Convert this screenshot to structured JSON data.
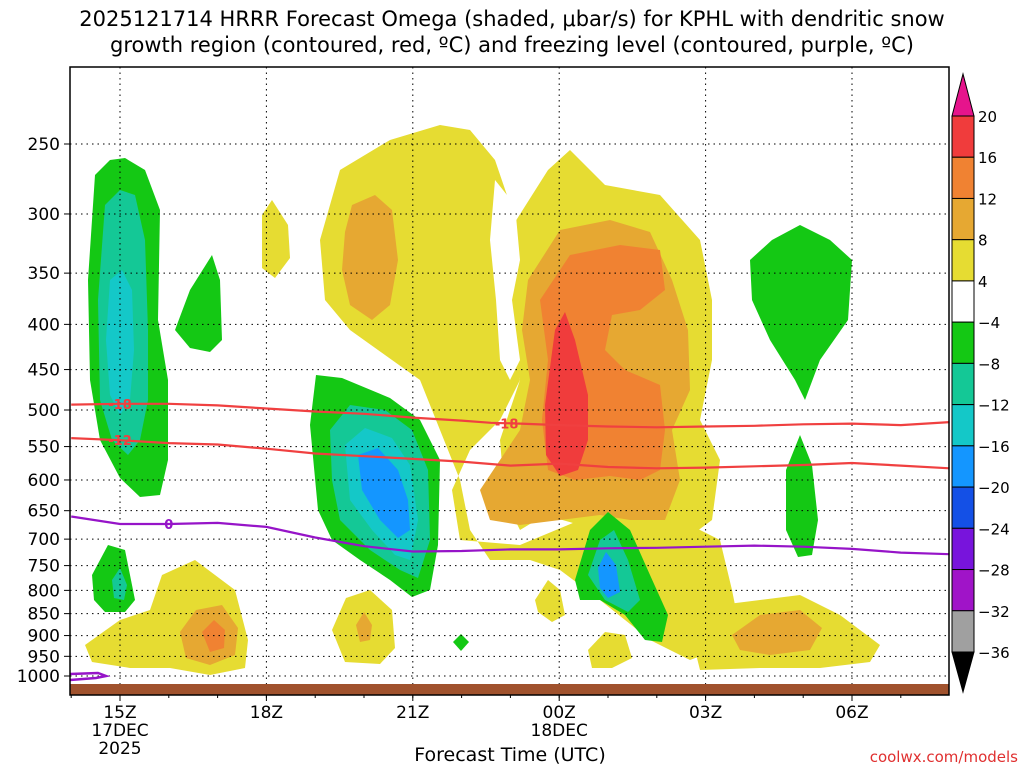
{
  "chart_data": {
    "type": "heatmap",
    "title": "2025121714 HRRR Forecast Omega (shaded, μbar/s) for KPHL with dendritic snow\ngrowth region (contoured, red, ºC) and freezing level (contoured, purple, ºC)",
    "xlabel": "Forecast Time (UTC)",
    "ylabel": "",
    "y_ticks": [
      250,
      300,
      350,
      400,
      450,
      500,
      550,
      600,
      650,
      700,
      750,
      800,
      850,
      900,
      950,
      1000
    ],
    "x_ticks": [
      {
        "hour": 15,
        "label": "15Z",
        "sub1": "17DEC",
        "sub2": "2025"
      },
      {
        "hour": 18,
        "label": "18Z",
        "sub1": "",
        "sub2": ""
      },
      {
        "hour": 21,
        "label": "21Z",
        "sub1": "",
        "sub2": ""
      },
      {
        "hour": 24,
        "label": "00Z",
        "sub1": "18DEC",
        "sub2": ""
      },
      {
        "hour": 27,
        "label": "03Z",
        "sub1": "",
        "sub2": ""
      },
      {
        "hour": 30,
        "label": "06Z",
        "sub1": "",
        "sub2": ""
      }
    ],
    "xlim_hours": [
      14,
      32
    ],
    "ylim_hpa": [
      1030,
      190
    ],
    "grid": true,
    "colorbar": {
      "labels": [
        "20",
        "16",
        "12",
        "8",
        "4",
        "−4",
        "−8",
        "−12",
        "−16",
        "−20",
        "−24",
        "−28",
        "−32",
        "−36"
      ],
      "colors": [
        "#f03c3c",
        "#f08232",
        "#e6a832",
        "#e6dc32",
        "#ffffff",
        "#14c814",
        "#14c896",
        "#14c8c8",
        "#1496ff",
        "#1450e6",
        "#7814dc",
        "#a014c8",
        "#a0a0a0"
      ],
      "top_arrow_color": "#e6148c",
      "bottom_arrow_color": "#000000"
    },
    "colors": {
      "ground": "#a0522d",
      "dgz_contour": "#f04040",
      "freezing_contour": "#9614c8"
    },
    "contours": [
      {
        "name": "dgz-minus18",
        "label": "-18",
        "points": [
          [
            14.0,
            493
          ],
          [
            15.0,
            492
          ],
          [
            16.0,
            492
          ],
          [
            17.0,
            494
          ],
          [
            18.0,
            498
          ],
          [
            19.0,
            502
          ],
          [
            20.0,
            505
          ],
          [
            21.0,
            510
          ],
          [
            22.0,
            514
          ],
          [
            22.6,
            517
          ],
          [
            23.2,
            518
          ],
          [
            24.0,
            520
          ],
          [
            25.0,
            522
          ],
          [
            26.0,
            523
          ],
          [
            27.0,
            522
          ],
          [
            28.0,
            521
          ],
          [
            29.0,
            519
          ],
          [
            30.0,
            518
          ],
          [
            31.0,
            520
          ],
          [
            32.0,
            516
          ]
        ]
      },
      {
        "name": "dgz-minus12",
        "label": "-12",
        "points": [
          [
            14.0,
            538
          ],
          [
            15.0,
            541
          ],
          [
            16.0,
            545
          ],
          [
            17.0,
            547
          ],
          [
            18.0,
            553
          ],
          [
            19.0,
            560
          ],
          [
            20.0,
            564
          ],
          [
            21.0,
            568
          ],
          [
            22.0,
            572
          ],
          [
            23.0,
            578
          ],
          [
            24.0,
            575
          ],
          [
            25.0,
            580
          ],
          [
            26.0,
            582
          ],
          [
            27.0,
            581
          ],
          [
            28.0,
            579
          ],
          [
            29.0,
            577
          ],
          [
            30.0,
            574
          ],
          [
            31.0,
            578
          ],
          [
            32.0,
            582
          ]
        ]
      },
      {
        "name": "freezing-level-0",
        "label": "0",
        "points": [
          [
            14.0,
            660
          ],
          [
            15.0,
            673
          ],
          [
            16.0,
            673
          ],
          [
            17.0,
            671
          ],
          [
            18.0,
            678
          ],
          [
            19.0,
            697
          ],
          [
            20.0,
            713
          ],
          [
            21.0,
            723
          ],
          [
            22.0,
            722
          ],
          [
            23.0,
            719
          ],
          [
            24.0,
            719
          ],
          [
            25.0,
            717
          ],
          [
            26.0,
            716
          ],
          [
            27.0,
            714
          ],
          [
            28.0,
            712
          ],
          [
            29.0,
            714
          ],
          [
            30.0,
            718
          ],
          [
            31.0,
            725
          ],
          [
            32.0,
            728
          ]
        ]
      }
    ]
  },
  "footer": {
    "xlabel": "Forecast Time (UTC)",
    "attribution": "coolwx.com/models"
  }
}
